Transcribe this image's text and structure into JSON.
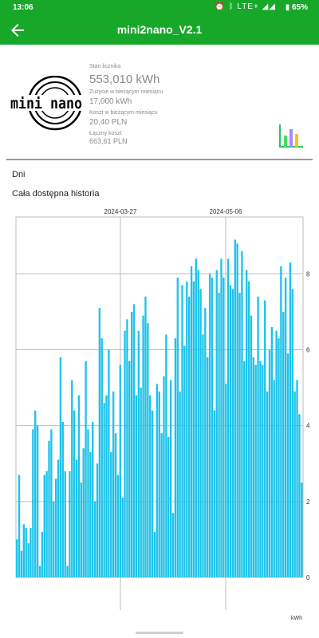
{
  "status_bar": {
    "time": "13:06",
    "network": "LTE+",
    "battery": "65%"
  },
  "app_bar": {
    "title": "mini2nano_V2.1",
    "back_icon": "arrow-left-icon"
  },
  "summary": {
    "meter_label": "Stan licznika",
    "meter_value": "553,010 kWh",
    "usage_label": "Zużycie w bieżącym miesiącu",
    "usage_value": "17,000 kWh",
    "cost_label": "Koszt w bieżącym miesiącu",
    "cost_value": "20,40 PLN",
    "total_label": "Łączny koszt",
    "total_value": "663,61 PLN",
    "logo_text": "mini nano",
    "chart_type_icon": "bar-chart-icon"
  },
  "filters": {
    "period": "Dni",
    "range": "Cała dostępna historia"
  },
  "colors": {
    "primary": "#17a82a",
    "bar": "#1ec3ea",
    "grid": "#bdbdbd",
    "muted_text": "#8a8a8a"
  },
  "chart_data": {
    "type": "bar",
    "x_ticks": [
      "2024-03-27",
      "2024-05-06"
    ],
    "y_ticks": [
      "0",
      "2",
      "4",
      "6",
      "8"
    ],
    "ylim": [
      0,
      9.5
    ],
    "y_unit": "kWh",
    "grid": true,
    "values": [
      1.0,
      2.7,
      0.7,
      1.4,
      1.3,
      0.9,
      1.3,
      3.9,
      4.4,
      4.0,
      0.3,
      1.2,
      2.7,
      2.8,
      3.6,
      3.9,
      2.0,
      2.6,
      3.1,
      5.8,
      4.1,
      2.8,
      0.3,
      2.8,
      5.2,
      4.4,
      3.1,
      4.8,
      2.5,
      3.4,
      5.7,
      3.9,
      3.3,
      4.1,
      2.0,
      3.0,
      7.1,
      6.3,
      4.6,
      4.8,
      6.0,
      3.3,
      4.9,
      3.8,
      2.7,
      5.6,
      2.1,
      6.5,
      6.8,
      5.7,
      7.0,
      7.2,
      4.8,
      6.5,
      5.0,
      6.9,
      7.4,
      6.7,
      4.8,
      4.4,
      1.2,
      5.1,
      4.9,
      3.8,
      5.3,
      6.4,
      3.7,
      5.2,
      1.7,
      6.3,
      7.9,
      4.9,
      7.7,
      6.1,
      7.8,
      7.4,
      8.2,
      7.8,
      8.4,
      8.1,
      7.6,
      6.4,
      7.1,
      5.8,
      8.0,
      7.9,
      4.4,
      8.1,
      7.5,
      8.4,
      7.9,
      5.1,
      8.4,
      7.7,
      7.6,
      8.9,
      8.8,
      7.5,
      8.6,
      5.7,
      8.1,
      7.8,
      6.9,
      5.8,
      5.6,
      7.4,
      5.7,
      5.6,
      7.3,
      4.9,
      6.0,
      6.6,
      5.2,
      6.5,
      6.3,
      8.2,
      7.0,
      7.9,
      5.9,
      8.3,
      7.6,
      4.9,
      5.2,
      4.3,
      2.5
    ]
  }
}
